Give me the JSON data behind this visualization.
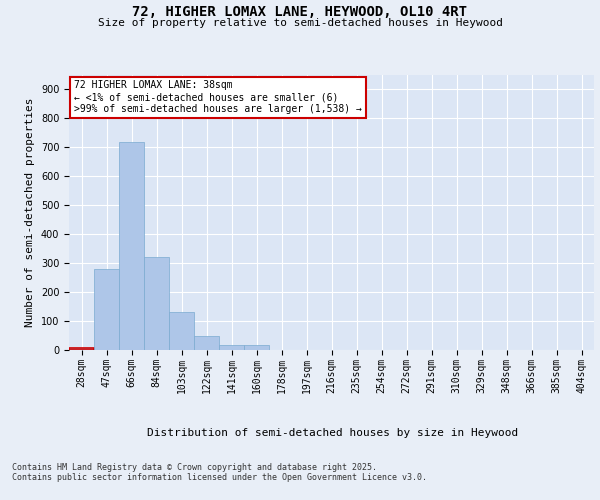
{
  "title_line1": "72, HIGHER LOMAX LANE, HEYWOOD, OL10 4RT",
  "title_line2": "Size of property relative to semi-detached houses in Heywood",
  "xlabel": "Distribution of semi-detached houses by size in Heywood",
  "ylabel": "Number of semi-detached properties",
  "categories": [
    "28sqm",
    "47sqm",
    "66sqm",
    "84sqm",
    "103sqm",
    "122sqm",
    "141sqm",
    "160sqm",
    "178sqm",
    "197sqm",
    "216sqm",
    "235sqm",
    "254sqm",
    "272sqm",
    "291sqm",
    "310sqm",
    "329sqm",
    "348sqm",
    "366sqm",
    "385sqm",
    "404sqm"
  ],
  "values": [
    6,
    281,
    718,
    323,
    130,
    47,
    19,
    19,
    0,
    0,
    0,
    1,
    0,
    0,
    0,
    0,
    0,
    0,
    0,
    0,
    0
  ],
  "bar_color": "#aec6e8",
  "bar_edge_color": "#7aaad0",
  "annotation_text": "72 HIGHER LOMAX LANE: 38sqm\n← <1% of semi-detached houses are smaller (6)\n>99% of semi-detached houses are larger (1,538) →",
  "annotation_box_color": "#ffffff",
  "annotation_box_edge": "#cc0000",
  "property_bar_index": 0,
  "footer_text": "Contains HM Land Registry data © Crown copyright and database right 2025.\nContains public sector information licensed under the Open Government Licence v3.0.",
  "bg_color": "#e8eef7",
  "plot_bg_color": "#dce6f5",
  "ylim": [
    0,
    950
  ],
  "grid_color": "#ffffff",
  "title_fontsize": 10,
  "subtitle_fontsize": 8,
  "axis_label_fontsize": 8,
  "tick_fontsize": 7,
  "annotation_fontsize": 7,
  "footer_fontsize": 6
}
